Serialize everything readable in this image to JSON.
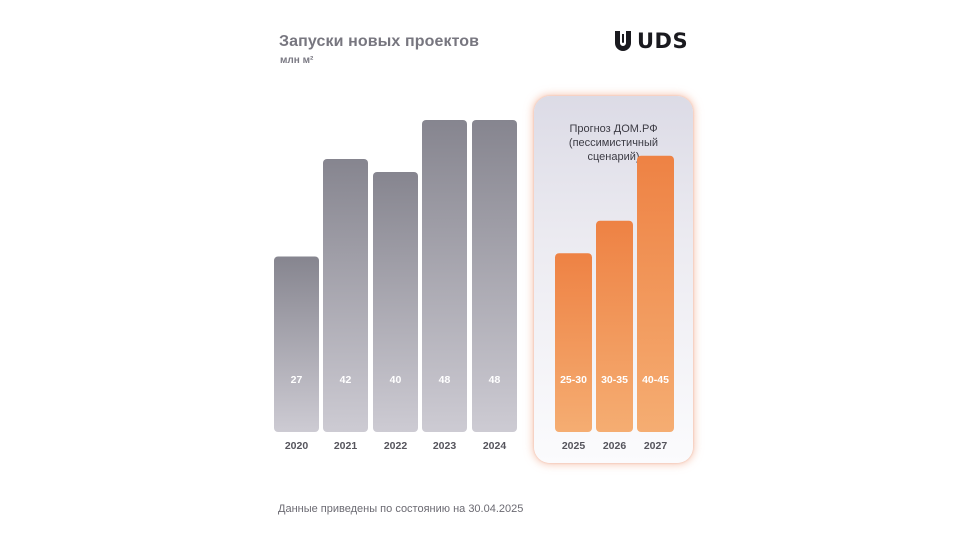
{
  "header": {
    "title": "Запуски новых проектов",
    "unit": "млн м²"
  },
  "logo": {
    "text": "UDS",
    "icon": "uds-logo-mark"
  },
  "forecast": {
    "label_lines": [
      "Прогноз ДОМ.РФ",
      "(пессимистичный",
      "сценарий)"
    ]
  },
  "footnote": "Данные приведены по состоянию на 30.04.2025",
  "colors": {
    "historical_top": "#86858f",
    "historical_bottom": "#cdcbd3",
    "forecast_top": "#ee8244",
    "forecast_bottom": "#f5ad72",
    "label_text": "#ffffff",
    "axis_text": "#56555d"
  },
  "chart_data": {
    "type": "bar",
    "title": "Запуски новых проектов",
    "ylabel": "млн м²",
    "categories": [
      "2020",
      "2021",
      "2022",
      "2023",
      "2024",
      "2025",
      "2026",
      "2027"
    ],
    "values": [
      27,
      42,
      40,
      48,
      48,
      27.5,
      32.5,
      42.5
    ],
    "value_labels": [
      "27",
      "42",
      "40",
      "48",
      "48",
      "25-30",
      "30-35",
      "40-45"
    ],
    "forecast": [
      false,
      false,
      false,
      false,
      false,
      true,
      true,
      true
    ],
    "forecast_label": "Прогноз ДОМ.РФ (пессимистичный сценарий)",
    "grid": false,
    "legend": "none"
  }
}
